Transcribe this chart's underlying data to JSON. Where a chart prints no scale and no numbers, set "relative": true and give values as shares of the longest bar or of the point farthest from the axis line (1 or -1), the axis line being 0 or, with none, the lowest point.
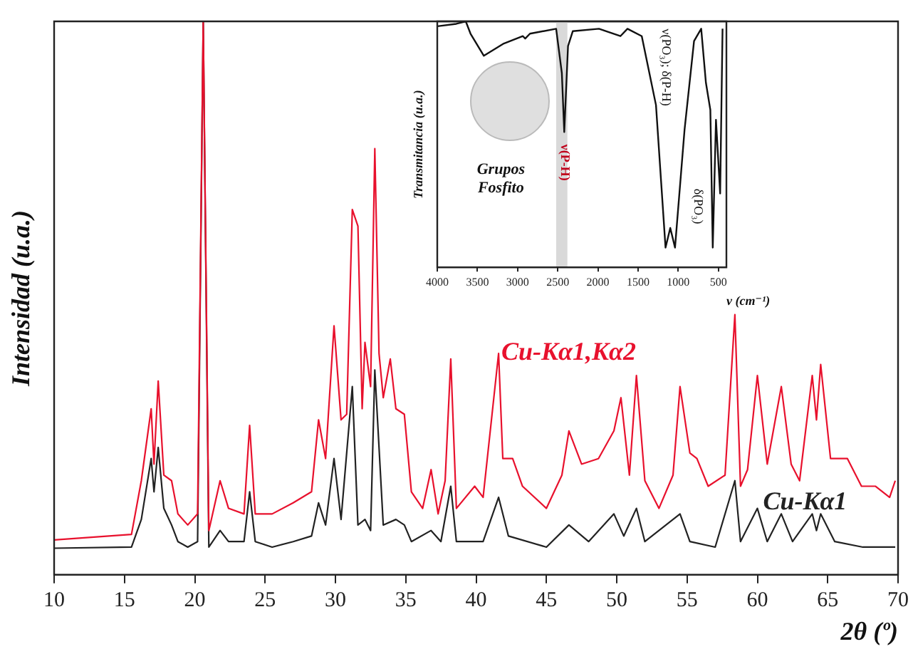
{
  "chart_data": [
    {
      "type": "line",
      "xlabel": "2θ (º)",
      "ylabel": "Intensidad (u.a.)",
      "relative": true,
      "xlim": [
        10,
        70
      ],
      "xticks": [
        10,
        15,
        20,
        25,
        30,
        35,
        40,
        45,
        50,
        55,
        60,
        65,
        70
      ],
      "tick_labels": "x",
      "series": [
        {
          "name": "Cu-Kα1,Kα2",
          "color": "#e8112d",
          "x": [
            10,
            15.5,
            16.2,
            16.9,
            17.1,
            17.4,
            17.8,
            18.35,
            18.8,
            19.5,
            20.2,
            20.6,
            21.0,
            21.8,
            22.4,
            23.5,
            23.9,
            24.3,
            25.5,
            27,
            28.3,
            28.8,
            29.3,
            29.9,
            30.4,
            30.8,
            31.2,
            31.6,
            31.9,
            32.1,
            32.5,
            32.8,
            33.1,
            33.4,
            33.9,
            34.3,
            34.9,
            35.4,
            36.2,
            36.8,
            37.3,
            37.8,
            38.2,
            38.6,
            39.9,
            40.5,
            41.6,
            41.9,
            42.6,
            43.3,
            45.0,
            46.1,
            46.6,
            47.5,
            48.7,
            49.8,
            50.3,
            50.9,
            51.4,
            52.0,
            53.0,
            54.0,
            54.5,
            55.2,
            55.7,
            56.5,
            57.7,
            58.4,
            58.8,
            59.3,
            60.0,
            60.7,
            61.7,
            62.4,
            63.0,
            63.9,
            64.2,
            64.5,
            65.2,
            66.4,
            67.4,
            68.4,
            69.4,
            69.8
          ],
          "values": [
            0.063,
            0.073,
            0.17,
            0.3,
            0.2,
            0.35,
            0.18,
            0.17,
            0.11,
            0.09,
            0.11,
            1.0,
            0.08,
            0.17,
            0.12,
            0.11,
            0.27,
            0.11,
            0.11,
            0.13,
            0.15,
            0.28,
            0.21,
            0.45,
            0.28,
            0.29,
            0.66,
            0.63,
            0.3,
            0.42,
            0.34,
            0.77,
            0.4,
            0.32,
            0.39,
            0.3,
            0.29,
            0.15,
            0.12,
            0.19,
            0.11,
            0.17,
            0.39,
            0.12,
            0.16,
            0.14,
            0.4,
            0.21,
            0.21,
            0.16,
            0.12,
            0.18,
            0.26,
            0.2,
            0.21,
            0.26,
            0.32,
            0.18,
            0.36,
            0.17,
            0.12,
            0.18,
            0.34,
            0.22,
            0.21,
            0.16,
            0.18,
            0.47,
            0.16,
            0.19,
            0.36,
            0.2,
            0.34,
            0.2,
            0.17,
            0.36,
            0.28,
            0.38,
            0.21,
            0.21,
            0.16,
            0.16,
            0.14,
            0.17
          ]
        },
        {
          "name": "Cu-Kα1",
          "color": "#222222",
          "x": [
            10,
            15.5,
            16.2,
            16.9,
            17.1,
            17.4,
            17.8,
            18.35,
            18.8,
            19.5,
            20.2,
            20.6,
            21.0,
            21.8,
            22.4,
            23.5,
            23.9,
            24.3,
            25.5,
            27,
            28.3,
            28.8,
            29.3,
            29.9,
            30.4,
            31.2,
            31.6,
            32.1,
            32.5,
            32.8,
            33.4,
            34.3,
            34.9,
            35.4,
            36.8,
            37.5,
            38.2,
            38.6,
            40.5,
            41.6,
            42.3,
            45.0,
            46.6,
            48.0,
            49.8,
            50.5,
            51.4,
            52.0,
            54.5,
            55.2,
            57.0,
            58.4,
            58.8,
            60.0,
            60.7,
            61.7,
            62.5,
            63.9,
            64.2,
            64.5,
            65.5,
            67.5,
            69.8
          ],
          "values": [
            0.048,
            0.05,
            0.1,
            0.21,
            0.15,
            0.23,
            0.12,
            0.09,
            0.06,
            0.05,
            0.06,
            1.0,
            0.05,
            0.08,
            0.06,
            0.06,
            0.15,
            0.06,
            0.05,
            0.06,
            0.07,
            0.13,
            0.09,
            0.21,
            0.1,
            0.34,
            0.09,
            0.1,
            0.08,
            0.37,
            0.09,
            0.1,
            0.09,
            0.06,
            0.08,
            0.06,
            0.16,
            0.06,
            0.06,
            0.14,
            0.07,
            0.05,
            0.09,
            0.06,
            0.11,
            0.07,
            0.12,
            0.06,
            0.11,
            0.06,
            0.05,
            0.17,
            0.06,
            0.12,
            0.06,
            0.11,
            0.06,
            0.11,
            0.08,
            0.11,
            0.06,
            0.05,
            0.05
          ]
        }
      ]
    },
    {
      "type": "line",
      "xlabel": "ν (cm⁻¹)",
      "ylabel": "Transmitancia (u.a.)",
      "relative": true,
      "xlim": [
        4000,
        400
      ],
      "xticks": [
        4000,
        3500,
        3000,
        2500,
        2000,
        1500,
        1000,
        500
      ],
      "tick_labels": "x",
      "bands": [
        {
          "axis": "x",
          "from": 2520,
          "to": 2380,
          "color": "#d9d9d9"
        }
      ],
      "annotations": [
        "ν(P-H)",
        "ν(PO₃); δ(P-H)",
        "δ(PO₃)",
        "Grupos Fosfito"
      ],
      "series": [
        {
          "color": "#111111",
          "x": [
            4000,
            3763,
            3645,
            3586,
            3420,
            3171,
            2934,
            2905,
            2846,
            2520,
            2449,
            2419,
            2372,
            2313,
            1987,
            1720,
            1632,
            1454,
            1277,
            1158,
            1099,
            1040,
            921,
            803,
            714,
            655,
            600,
            570,
            530,
            478,
            448
          ],
          "values": [
            0.98,
            0.99,
            1.0,
            0.95,
            0.86,
            0.91,
            0.94,
            0.93,
            0.95,
            0.97,
            0.79,
            0.55,
            0.9,
            0.96,
            0.97,
            0.94,
            0.97,
            0.94,
            0.66,
            0.08,
            0.16,
            0.08,
            0.56,
            0.92,
            0.97,
            0.75,
            0.64,
            0.08,
            0.6,
            0.3,
            0.97
          ]
        }
      ]
    }
  ]
}
